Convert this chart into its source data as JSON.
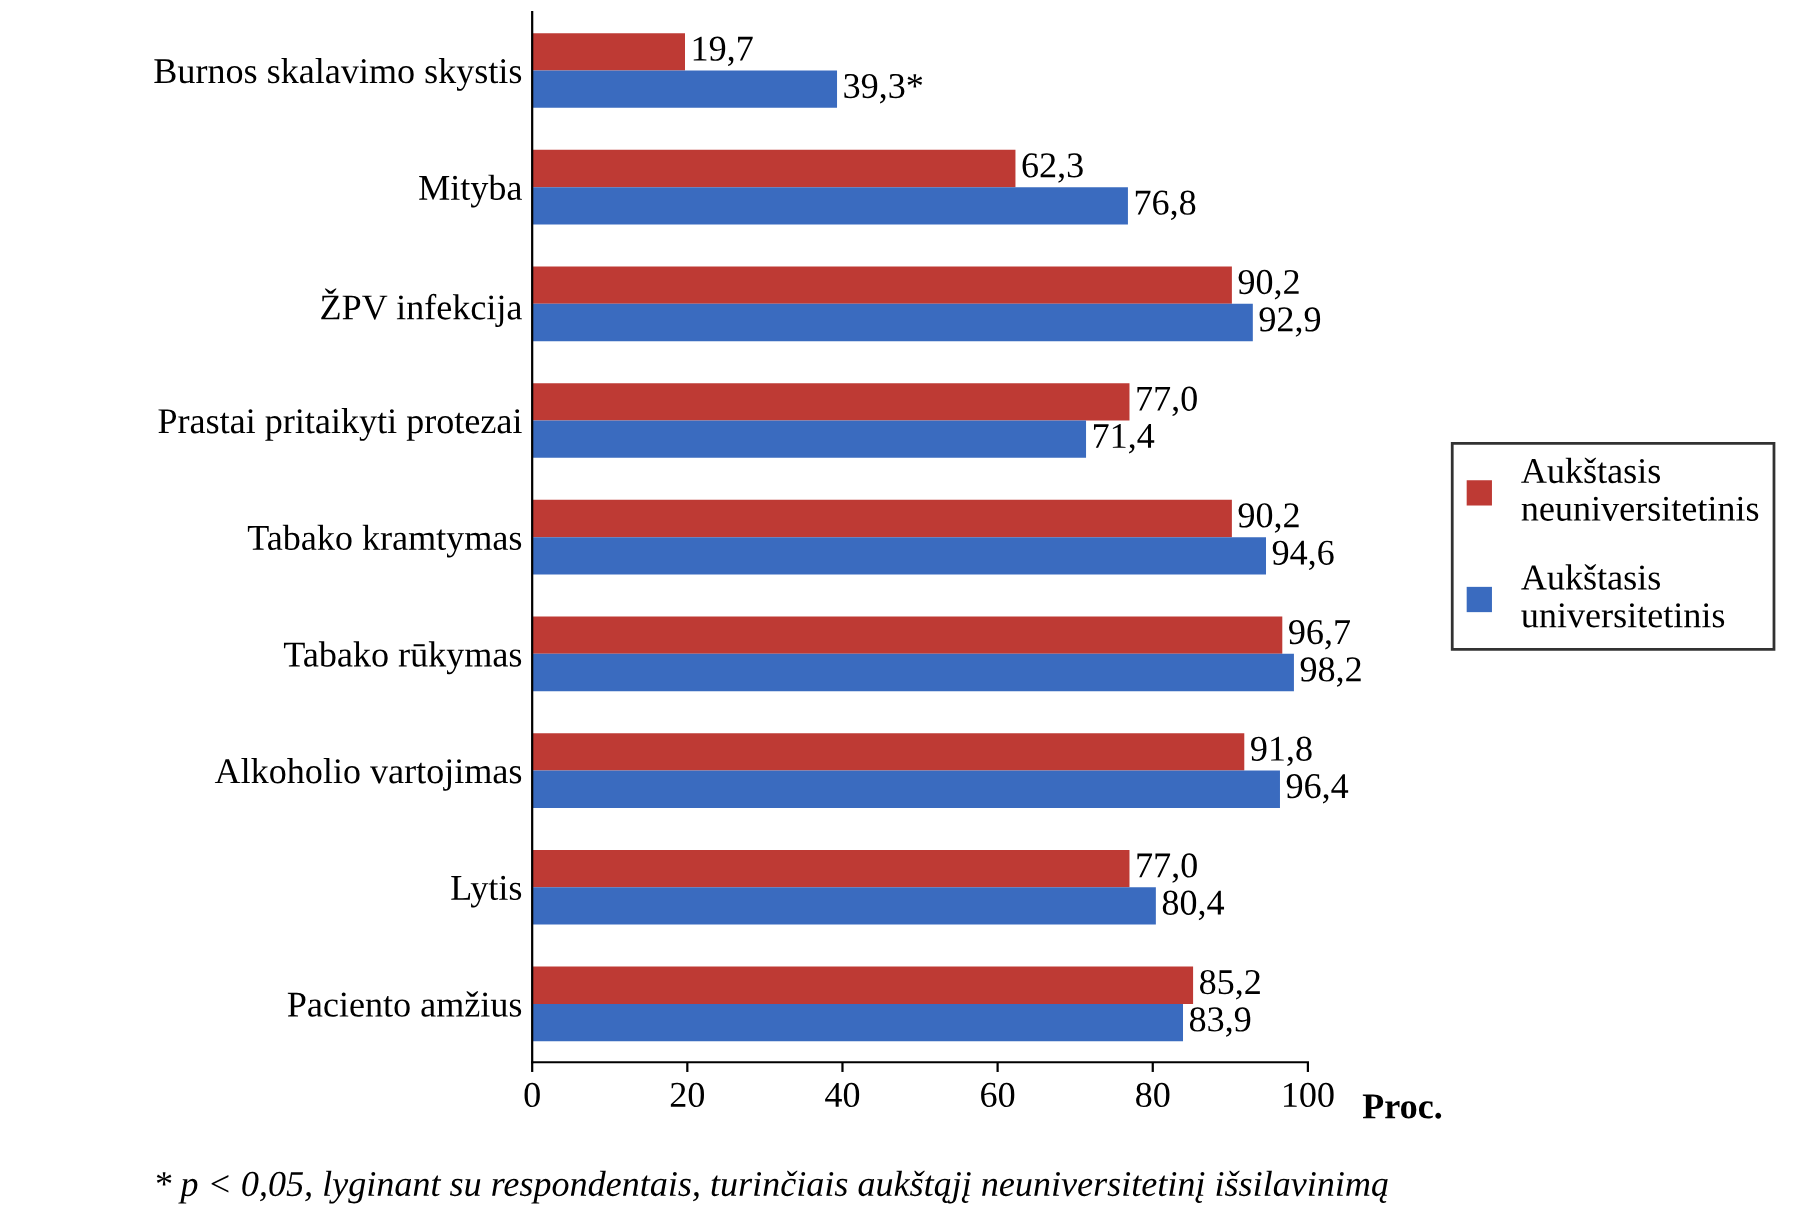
{
  "chart_data": {
    "type": "bar",
    "orientation": "horizontal",
    "categories": [
      "Burnos skalavimo skystis",
      "Mityba",
      "ŽPV infekcija",
      "Prastai pritaikyti protezai",
      "Tabako kramtymas",
      "Tabako rūkymas",
      "Alkoholio vartojimas",
      "Lytis",
      "Paciento amžius"
    ],
    "series": [
      {
        "name": "Aukštasis\nneuniversitetinis",
        "color": "#be3a34",
        "values": [
          19.7,
          62.3,
          90.2,
          77.0,
          90.2,
          96.7,
          91.8,
          77.0,
          85.2
        ],
        "value_labels": [
          "19,7",
          "62,3",
          "90,2",
          "77,0",
          "90,2",
          "96,7",
          "91,8",
          "77,0",
          "85,2"
        ]
      },
      {
        "name": "Aukštasis\nuniversitetinis",
        "color": "#3a6bbf",
        "values": [
          39.3,
          76.8,
          92.9,
          71.4,
          94.6,
          98.2,
          96.4,
          80.4,
          83.9
        ],
        "value_labels": [
          "39,3*",
          "76,8",
          "92,9",
          "71,4",
          "94,6",
          "98,2",
          "96,4",
          "80,4",
          "83,9"
        ]
      }
    ],
    "xlim": [
      0,
      100
    ],
    "xticks": [
      0,
      20,
      40,
      60,
      80,
      100
    ],
    "xlabel": "Proc.",
    "grid": false,
    "legend": "right",
    "annotations": [
      "* p < 0,05, lyginant su respondentais, turinčiais aukštąjį neuniversitetinį išsilavinimą"
    ]
  }
}
